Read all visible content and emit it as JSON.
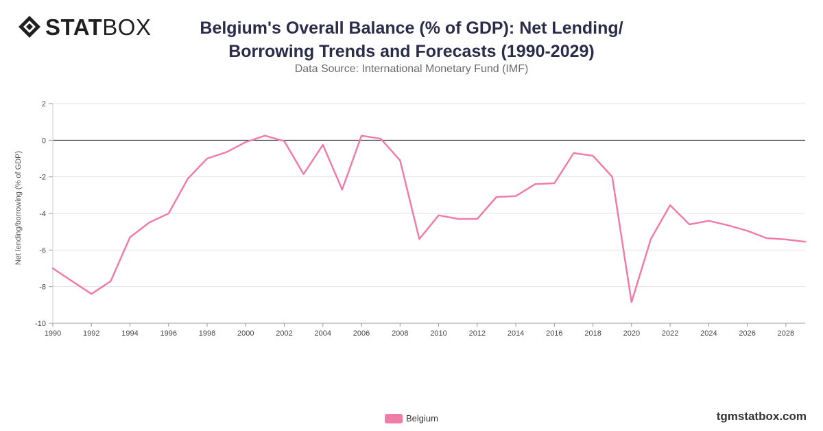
{
  "brand": {
    "logo_bold": "STAT",
    "logo_light": "BOX",
    "icon": "diamond-logo-icon",
    "url": "tgmstatbox.com"
  },
  "colors": {
    "series": "#f07ca8",
    "title": "#2b2b4a",
    "grid": "#e3e3e3",
    "zero_line": "#333333"
  },
  "chart_data": {
    "type": "line",
    "title": "Belgium's Overall Balance (% of GDP): Net Lending/ Borrowing Trends and Forecasts (1990-2029)",
    "subtitle": "Data Source: International Monetary Fund (IMF)",
    "xlabel": "",
    "ylabel": "Net lending/borrowing (% of GDP)",
    "ylim": [
      -10,
      2
    ],
    "yticks": [
      2,
      0,
      -2,
      -4,
      -6,
      -8,
      -10
    ],
    "xlim": [
      1990,
      2029
    ],
    "xticks": [
      1990,
      1992,
      1994,
      1996,
      1998,
      2000,
      2002,
      2004,
      2006,
      2008,
      2010,
      2012,
      2014,
      2016,
      2018,
      2020,
      2022,
      2024,
      2026,
      2028
    ],
    "grid": true,
    "legend_position": "bottom-center",
    "x": [
      1990,
      1991,
      1992,
      1993,
      1994,
      1995,
      1996,
      1997,
      1998,
      1999,
      2000,
      2001,
      2002,
      2003,
      2004,
      2005,
      2006,
      2007,
      2008,
      2009,
      2010,
      2011,
      2012,
      2013,
      2014,
      2015,
      2016,
      2017,
      2018,
      2019,
      2020,
      2021,
      2022,
      2023,
      2024,
      2025,
      2026,
      2027,
      2028,
      2029
    ],
    "series": [
      {
        "name": "Belgium",
        "values": [
          -7.0,
          -7.7,
          -8.4,
          -7.7,
          -5.3,
          -4.5,
          -4.0,
          -2.1,
          -1.0,
          -0.65,
          -0.1,
          0.25,
          -0.05,
          -1.85,
          -0.25,
          -2.7,
          0.25,
          0.08,
          -1.1,
          -5.4,
          -4.1,
          -4.3,
          -4.3,
          -3.1,
          -3.05,
          -2.4,
          -2.35,
          -0.7,
          -0.85,
          -2.0,
          -8.85,
          -5.4,
          -3.55,
          -4.6,
          -4.4,
          -4.65,
          -4.95,
          -5.35,
          -5.42,
          -5.55
        ]
      }
    ]
  }
}
